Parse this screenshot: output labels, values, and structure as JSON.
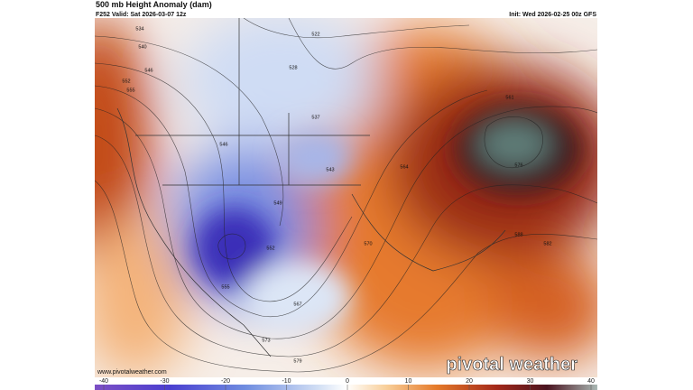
{
  "header": {
    "title": "500 mb Height Anomaly (dam)",
    "valid": "F252 Valid: Sat 2026-03-07 12z",
    "init": "Init: Wed 2026-02-25 00z GFS"
  },
  "footer": {
    "url": "www.pivotalweather.com",
    "brand": "pivotal weather"
  },
  "colorbar": {
    "lim": [
      -40,
      40
    ],
    "ticks": [
      -40,
      -30,
      -20,
      -10,
      0,
      10,
      20,
      30,
      40
    ]
  },
  "contour_labels": [
    534,
    540,
    546,
    552,
    555,
    546,
    549,
    552,
    555,
    561,
    564,
    567,
    570,
    573,
    576,
    579,
    582,
    588,
    522,
    528,
    537,
    543
  ]
}
